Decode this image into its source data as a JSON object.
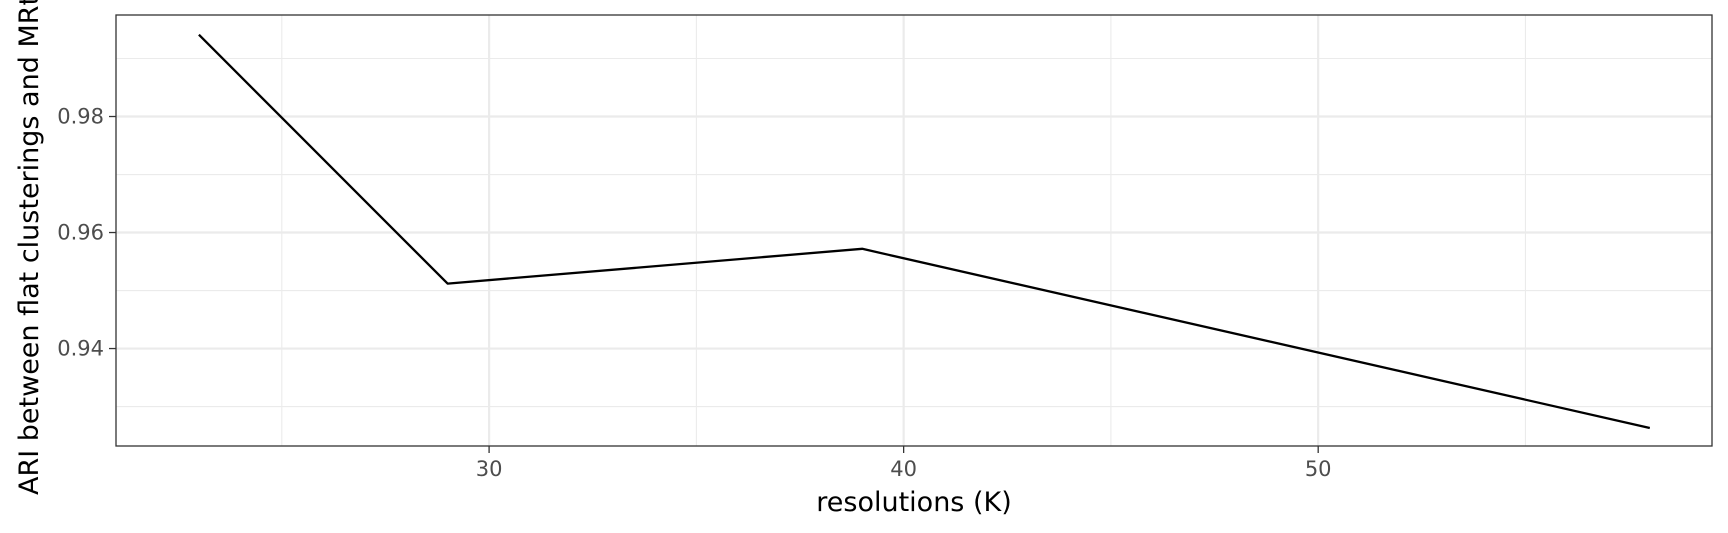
{
  "chart_data": {
    "type": "line",
    "title": "",
    "xlabel": "resolutions (K)",
    "ylabel": "ARI between flat clusterings and MRtree",
    "xlim": [
      21,
      59.5
    ],
    "ylim": [
      0.9232,
      0.9975
    ],
    "x_ticks": [
      30,
      40,
      50
    ],
    "x_minor_ticks": [
      25,
      35,
      45,
      55
    ],
    "y_ticks": [
      0.94,
      0.96,
      0.98
    ],
    "y_minor_ticks": [
      0.93,
      0.95,
      0.97,
      0.99
    ],
    "x_tick_labels": [
      "30",
      "40",
      "50"
    ],
    "y_tick_labels": [
      "0.94",
      "0.96",
      "0.98"
    ],
    "grid": true,
    "series": [
      {
        "x": [
          23,
          29,
          39,
          58
        ],
        "y": [
          0.9941,
          0.9512,
          0.9572,
          0.9263
        ],
        "color": "#000000"
      }
    ]
  }
}
